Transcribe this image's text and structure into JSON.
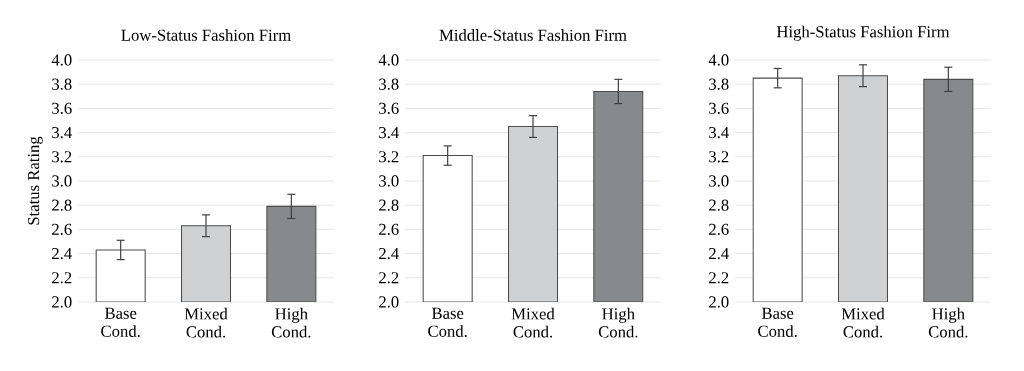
{
  "chart_data": [
    {
      "type": "bar",
      "title": "Low-Status Fashion Firm",
      "ylabel": "Status Rating",
      "categories": [
        "Base Cond.",
        "Mixed Cond.",
        "High Cond."
      ],
      "values": [
        2.43,
        2.63,
        2.79
      ],
      "errors": [
        0.08,
        0.09,
        0.1
      ],
      "colors": [
        "#ffffff",
        "#d0d1d3",
        "#88898d"
      ],
      "ylim": [
        2,
        4
      ],
      "yticks": [
        {
          "value": 2,
          "label": "2.0"
        },
        {
          "value": 2.2,
          "label": "2.2"
        },
        {
          "value": 2.4,
          "label": "2.4"
        },
        {
          "value": 2.6,
          "label": "2.6"
        },
        {
          "value": 2.8,
          "label": "2.8"
        },
        {
          "value": 3,
          "label": "3.0"
        },
        {
          "value": 3.2,
          "label": "3.2"
        },
        {
          "value": 3.4,
          "label": "3.4"
        },
        {
          "value": 3.6,
          "label": "3.6"
        },
        {
          "value": 3.8,
          "label": "3.8"
        },
        {
          "value": 4,
          "label": "4.0"
        }
      ],
      "grid": "y"
    },
    {
      "type": "bar",
      "title": "Middle-Status Fashion Firm",
      "categories": [
        "Base Cond.",
        "Mixed Cond.",
        "High Cond."
      ],
      "values": [
        3.21,
        3.45,
        3.74
      ],
      "errors": [
        0.08,
        0.09,
        0.1
      ],
      "colors": [
        "#ffffff",
        "#d0d1d3",
        "#88898d"
      ],
      "ylim": [
        2,
        4
      ],
      "yticks": [
        {
          "value": 2,
          "label": "2.0"
        },
        {
          "value": 2.2,
          "label": "2.2"
        },
        {
          "value": 2.4,
          "label": "2.4"
        },
        {
          "value": 2.6,
          "label": "2.6"
        },
        {
          "value": 2.8,
          "label": "2.8"
        },
        {
          "value": 3,
          "label": "3.0"
        },
        {
          "value": 3.2,
          "label": "3.2"
        },
        {
          "value": 3.4,
          "label": "3.4"
        },
        {
          "value": 3.6,
          "label": "3.6"
        },
        {
          "value": 3.8,
          "label": "3.8"
        },
        {
          "value": 4,
          "label": "4.0"
        }
      ],
      "grid": "y"
    },
    {
      "type": "bar",
      "title": "High-Status Fashion Firm",
      "categories": [
        "Base Cond.",
        "Mixed Cond.",
        "High Cond."
      ],
      "values": [
        3.85,
        3.87,
        3.84
      ],
      "errors": [
        0.08,
        0.09,
        0.1
      ],
      "colors": [
        "#ffffff",
        "#d0d1d3",
        "#88898d"
      ],
      "ylim": [
        2,
        4
      ],
      "yticks": [
        {
          "value": 2,
          "label": "2.0"
        },
        {
          "value": 2.2,
          "label": "2.2"
        },
        {
          "value": 2.4,
          "label": "2.4"
        },
        {
          "value": 2.6,
          "label": "2.6"
        },
        {
          "value": 2.8,
          "label": "2.8"
        },
        {
          "value": 3,
          "label": "3.0"
        },
        {
          "value": 3.2,
          "label": "3.2"
        },
        {
          "value": 3.4,
          "label": "3.4"
        },
        {
          "value": 3.6,
          "label": "3.6"
        },
        {
          "value": 3.8,
          "label": "3.8"
        },
        {
          "value": 4,
          "label": "4.0"
        }
      ],
      "grid": "y"
    }
  ]
}
